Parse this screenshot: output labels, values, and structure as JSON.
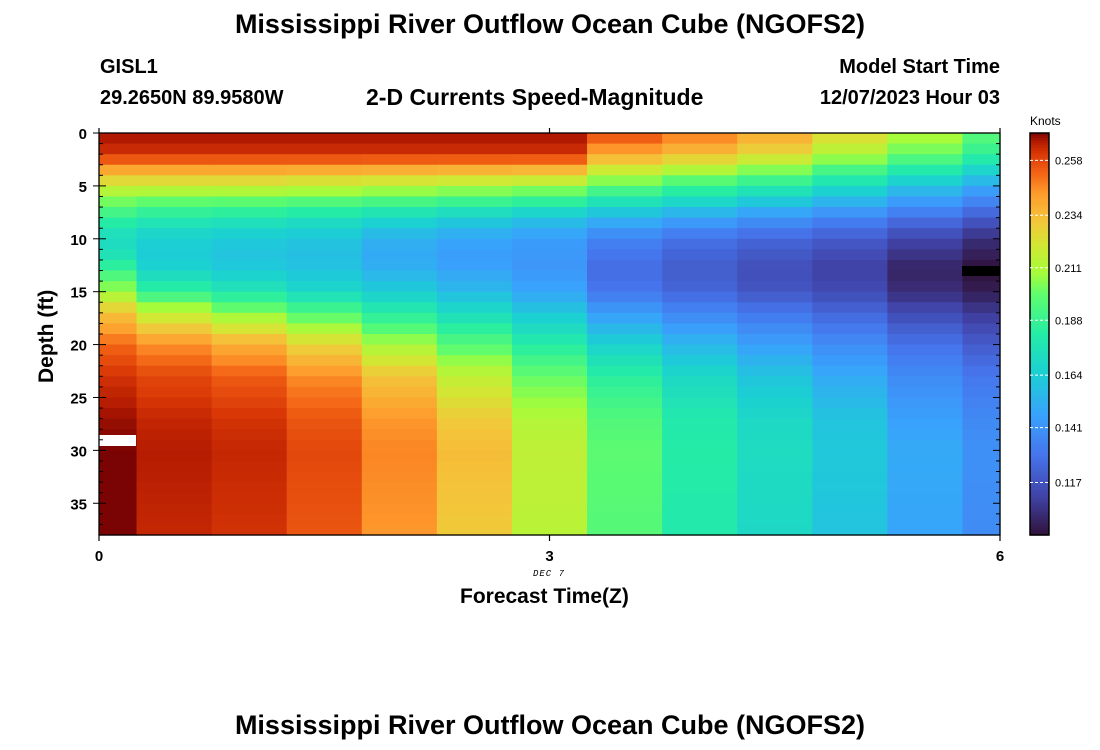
{
  "header": {
    "title": "Mississippi River Outflow Ocean Cube (NGOFS2)",
    "station": "GISL1",
    "coords": "29.2650N  89.9580W",
    "subtitle": "2-D Currents Speed-Magnitude",
    "start_label": "Model Start Time",
    "start_value": "12/07/2023 Hour 03"
  },
  "footer": {
    "repeat_title": "Mississippi River Outflow Ocean Cube (NGOFS2)"
  },
  "chart_data": {
    "type": "heatmap",
    "title": "2-D Currents Speed-Magnitude",
    "xlabel": "Forecast Time(Z)",
    "ylabel": "Depth (ft)",
    "x_note": "DEC 7",
    "x_ticks": [
      0,
      3,
      6
    ],
    "y_ticks": [
      0,
      5,
      10,
      15,
      20,
      25,
      30,
      35
    ],
    "xlim": [
      0,
      6
    ],
    "ylim": [
      0,
      38
    ],
    "y_inverted": true,
    "colorbar": {
      "label": "Knots",
      "min": 0.094,
      "max": 0.27,
      "ticks": [
        0.258,
        0.234,
        0.211,
        0.188,
        0.164,
        0.141,
        0.117
      ],
      "colormap": "turbo"
    },
    "times": [
      0,
      0.5,
      1.0,
      1.5,
      2.0,
      2.5,
      3.0,
      3.5,
      4.0,
      4.5,
      5.0,
      5.5,
      6.0
    ],
    "depth_bin_ft": 1,
    "profile_anchors_depth_ft": [
      0,
      2,
      5,
      8,
      10,
      12,
      13,
      15,
      17,
      20,
      23,
      27,
      30,
      38
    ],
    "speed_profiles_knots": [
      [
        0.268,
        0.262,
        0.218,
        0.186,
        0.17,
        0.178,
        0.19,
        0.208,
        0.232,
        0.252,
        0.262,
        0.268,
        0.27,
        0.27
      ],
      [
        0.268,
        0.262,
        0.218,
        0.18,
        0.165,
        0.163,
        0.168,
        0.186,
        0.216,
        0.245,
        0.258,
        0.264,
        0.266,
        0.264
      ],
      [
        0.268,
        0.262,
        0.218,
        0.178,
        0.162,
        0.16,
        0.163,
        0.178,
        0.206,
        0.238,
        0.254,
        0.262,
        0.264,
        0.262
      ],
      [
        0.268,
        0.262,
        0.216,
        0.175,
        0.16,
        0.158,
        0.16,
        0.17,
        0.195,
        0.227,
        0.246,
        0.255,
        0.258,
        0.255
      ],
      [
        0.268,
        0.262,
        0.214,
        0.17,
        0.152,
        0.15,
        0.153,
        0.164,
        0.182,
        0.21,
        0.232,
        0.244,
        0.247,
        0.244
      ],
      [
        0.268,
        0.262,
        0.212,
        0.165,
        0.148,
        0.145,
        0.148,
        0.156,
        0.172,
        0.196,
        0.216,
        0.23,
        0.234,
        0.23
      ],
      [
        0.268,
        0.262,
        0.21,
        0.16,
        0.145,
        0.142,
        0.143,
        0.148,
        0.162,
        0.182,
        0.2,
        0.212,
        0.216,
        0.214
      ],
      [
        0.258,
        0.24,
        0.198,
        0.154,
        0.135,
        0.128,
        0.126,
        0.13,
        0.145,
        0.166,
        0.184,
        0.195,
        0.198,
        0.196
      ],
      [
        0.25,
        0.234,
        0.19,
        0.148,
        0.128,
        0.122,
        0.12,
        0.124,
        0.136,
        0.155,
        0.17,
        0.18,
        0.182,
        0.18
      ],
      [
        0.24,
        0.226,
        0.182,
        0.142,
        0.124,
        0.117,
        0.115,
        0.118,
        0.13,
        0.146,
        0.16,
        0.17,
        0.172,
        0.17
      ],
      [
        0.226,
        0.212,
        0.172,
        0.136,
        0.12,
        0.112,
        0.11,
        0.114,
        0.124,
        0.138,
        0.15,
        0.16,
        0.162,
        0.16
      ],
      [
        0.212,
        0.2,
        0.16,
        0.128,
        0.112,
        0.104,
        0.1,
        0.104,
        0.114,
        0.128,
        0.138,
        0.146,
        0.15,
        0.148
      ],
      [
        0.198,
        0.186,
        0.15,
        0.12,
        0.104,
        0.097,
        0.094,
        0.098,
        0.108,
        0.12,
        0.13,
        0.137,
        0.14,
        0.138
      ]
    ]
  }
}
